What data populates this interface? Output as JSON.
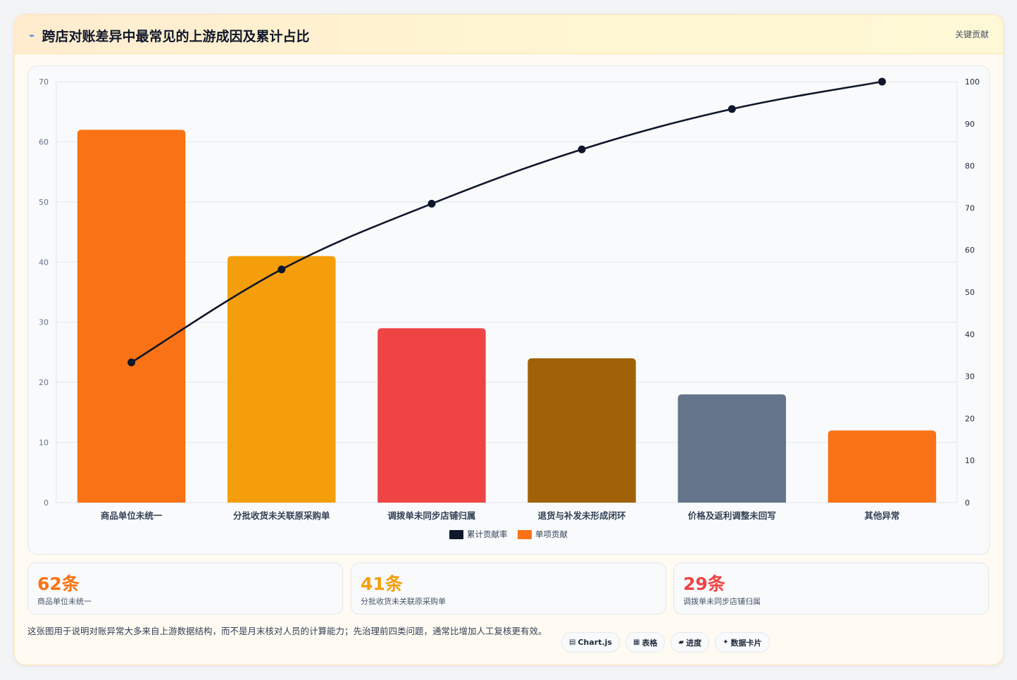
{
  "header": {
    "icon": "zap-icon",
    "title": "跨店对账差异中最常见的上游成因及累计占比",
    "tag": "关键贡献"
  },
  "chart_data": {
    "type": "bar",
    "categories": [
      "商品单位未统一",
      "分批收货未关联原采购单",
      "调拨单未同步店铺归属",
      "退货与补发未形成闭环",
      "价格及返利调整未回写",
      "其他异常"
    ],
    "series": [
      {
        "name": "累计贡献率",
        "type": "line",
        "axis": "right",
        "color": "#0f172a",
        "values": [
          33.3,
          55.4,
          71.0,
          83.9,
          93.5,
          100
        ]
      },
      {
        "name": "单项贡献",
        "type": "bar",
        "axis": "left",
        "values": [
          62,
          41,
          29,
          24,
          18,
          12
        ],
        "colors": [
          "#f97316",
          "#f59e0b",
          "#ef4444",
          "#a16207",
          "#64748b",
          "#f97316"
        ],
        "legend_color": "#f97316"
      }
    ],
    "y_left": {
      "min": 0,
      "max": 70,
      "ticks": [
        0,
        10,
        20,
        30,
        40,
        50,
        60,
        70
      ]
    },
    "y_right": {
      "min": 0,
      "max": 100,
      "ticks": [
        0,
        10,
        20,
        30,
        40,
        50,
        60,
        70,
        80,
        90,
        100
      ]
    },
    "grid": true,
    "legend": "bottom"
  },
  "stats": [
    {
      "value": "62条",
      "label": "商品单位未统一",
      "color": "#f97316"
    },
    {
      "value": "41条",
      "label": "分批收货未关联原采购单",
      "color": "#f59e0b"
    },
    {
      "value": "29条",
      "label": "调拨单未同步店铺归属",
      "color": "#ef4444"
    }
  ],
  "note": "这张图用于说明对账异常大多来自上游数据结构，而不是月末核对人员的计算能力；先治理前四类问题，通常比增加人工复核更有效。",
  "chips": [
    {
      "icon": "chart-icon",
      "glyph": "▤",
      "label": "Chart.js"
    },
    {
      "icon": "table-icon",
      "glyph": "▦",
      "label": "表格"
    },
    {
      "icon": "progress-icon",
      "glyph": "▰",
      "label": "进度"
    },
    {
      "icon": "sparkle-icon",
      "glyph": "✦",
      "label": "数据卡片"
    }
  ]
}
